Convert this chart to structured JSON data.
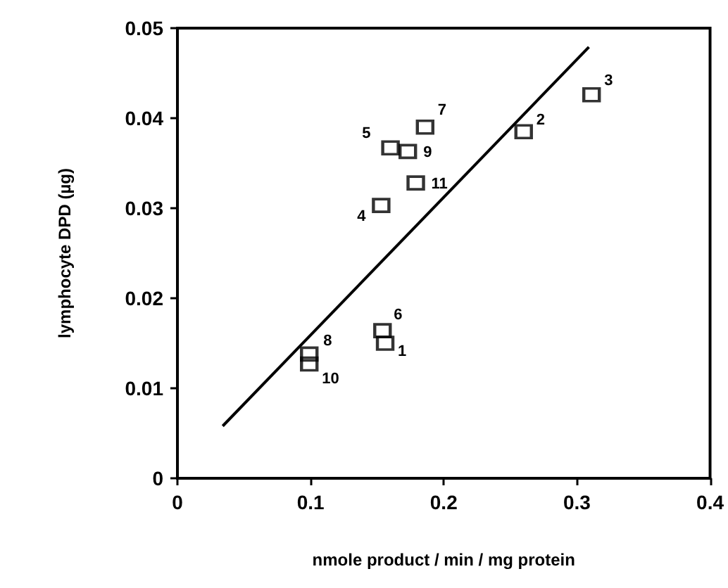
{
  "chart_data": {
    "type": "scatter",
    "xlabel": "nmole product / min / mg protein",
    "ylabel": "lymphocyte DPD (µg)",
    "xlim": [
      0,
      0.4
    ],
    "xticks": [
      0,
      0.1,
      0.2,
      0.3,
      0.4
    ],
    "ylim": [
      0,
      0.05
    ],
    "yticks": [
      0,
      0.01,
      0.02,
      0.03,
      0.04,
      0.05
    ],
    "marker": "square",
    "series": [
      {
        "color": "#000000",
        "x": [
          0.156,
          0.26,
          0.311,
          0.153,
          0.16,
          0.154,
          0.186,
          0.099,
          0.173,
          0.099,
          0.179
        ],
        "values": [
          0.015,
          0.0385,
          0.0426,
          0.0303,
          0.0367,
          0.0164,
          0.039,
          0.0138,
          0.0363,
          0.0127,
          0.0328
        ]
      },
      {
        "type": "line",
        "color": "#000000",
        "marker": "none",
        "x": [
          0.034,
          0.309
        ],
        "values": [
          0.0058,
          0.0479
        ]
      }
    ],
    "annotations": [
      {
        "text": "1",
        "x": 0.156,
        "y": 0.015
      },
      {
        "text": "2",
        "x": 0.26,
        "y": 0.0385
      },
      {
        "text": "3",
        "x": 0.311,
        "y": 0.0426
      },
      {
        "text": "4",
        "x": 0.153,
        "y": 0.0303
      },
      {
        "text": "5",
        "x": 0.16,
        "y": 0.0367
      },
      {
        "text": "6",
        "x": 0.154,
        "y": 0.0164
      },
      {
        "text": "7",
        "x": 0.186,
        "y": 0.039
      },
      {
        "text": "8",
        "x": 0.099,
        "y": 0.0138
      },
      {
        "text": "9",
        "x": 0.173,
        "y": 0.0363
      },
      {
        "text": "10",
        "x": 0.099,
        "y": 0.0127
      },
      {
        "text": "11",
        "x": 0.179,
        "y": 0.0328
      }
    ]
  }
}
